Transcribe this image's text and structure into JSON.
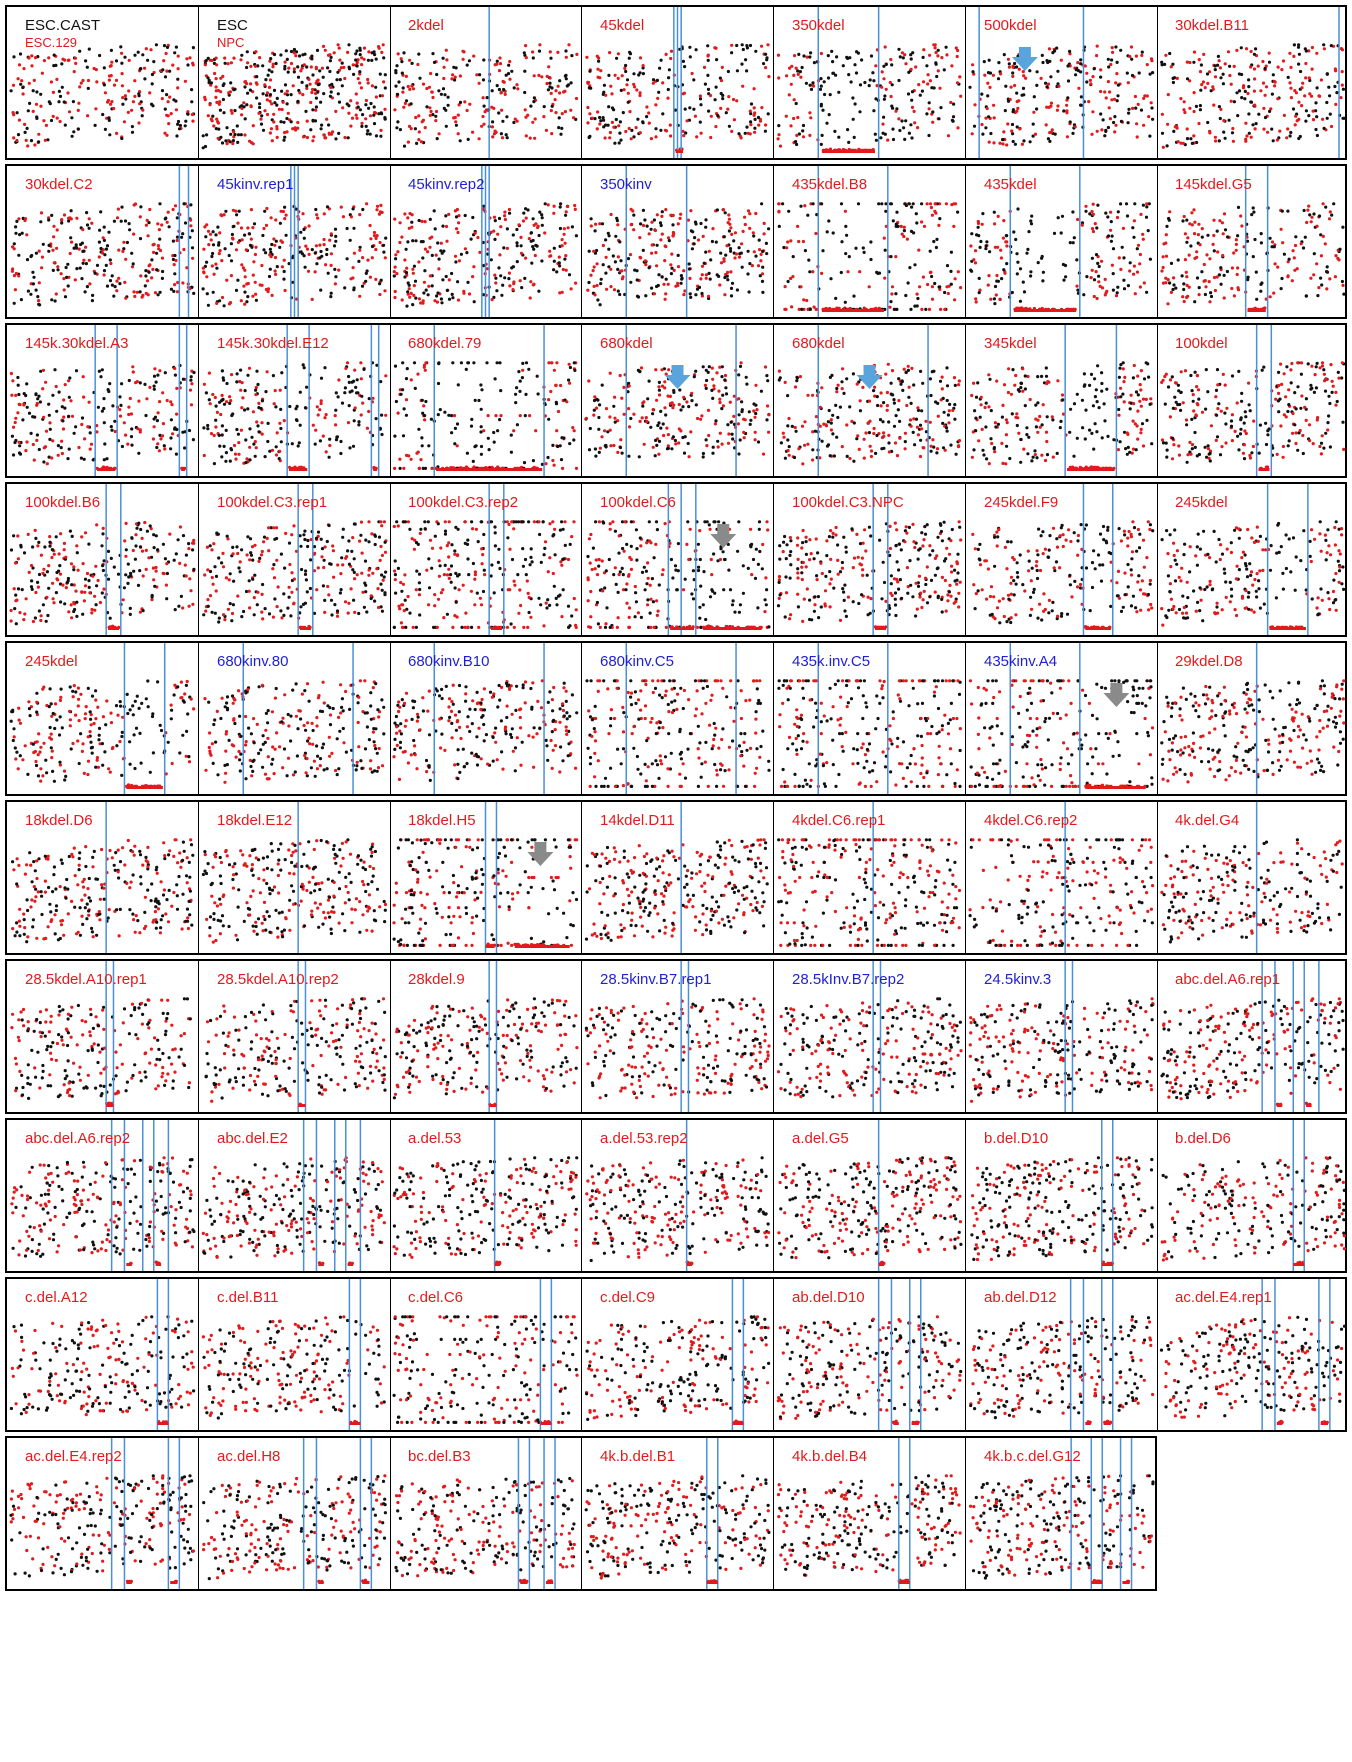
{
  "colors": {
    "red_points": "#e31a1c",
    "black_points": "#111111",
    "blue_lines": "#4a90d9",
    "red_bar": "#e31a1c",
    "blue_arrow": "#5aa4dd",
    "gray_arrow": "#8a8a8a",
    "label_red": "#e31a1c",
    "label_blue": "#1f1fd6"
  },
  "chart_data": [
    {
      "type": "scatter",
      "title": "ESC.CAST",
      "subtitle": "ESC.129",
      "title_color": "black",
      "lines": [],
      "bars": [],
      "arrow": null
    },
    {
      "type": "scatter",
      "title": "ESC",
      "subtitle": "NPC",
      "title_color": "black",
      "lines": [],
      "bars": [],
      "arrow": null
    },
    {
      "type": "scatter",
      "title": "2kdel",
      "title_color": "red",
      "lines": [
        0.52
      ],
      "bars": [],
      "arrow": null
    },
    {
      "type": "scatter",
      "title": "45kdel",
      "title_color": "red",
      "lines": [
        0.48,
        0.5,
        0.52
      ],
      "bars": [
        [
          0.49,
          0.53
        ]
      ],
      "arrow": null
    },
    {
      "type": "scatter",
      "title": "350kdel",
      "title_color": "red",
      "lines": [
        0.22,
        0.55
      ],
      "bars": [
        [
          0.24,
          0.53
        ]
      ],
      "arrow": null
    },
    {
      "type": "scatter",
      "title": "500kdel",
      "title_color": "red",
      "lines": [
        0.05,
        0.62
      ],
      "bars": [],
      "arrow": {
        "color": "blue",
        "x": 0.3
      }
    },
    {
      "type": "scatter",
      "title": "30kdel.B11",
      "title_color": "red",
      "lines": [
        0.97
      ],
      "bars": [],
      "arrow": null
    },
    {
      "type": "scatter",
      "title": "30kdel.C2",
      "title_color": "red",
      "lines": [
        0.92,
        0.97
      ],
      "bars": [],
      "arrow": null
    },
    {
      "type": "scatter",
      "title": "45kinv.rep1",
      "title_color": "blue",
      "lines": [
        0.48,
        0.5,
        0.52
      ],
      "bars": [],
      "arrow": null
    },
    {
      "type": "scatter",
      "title": "45kinv.rep2",
      "title_color": "blue",
      "lines": [
        0.48,
        0.5,
        0.52
      ],
      "bars": [],
      "arrow": null
    },
    {
      "type": "scatter",
      "title": "350kinv",
      "title_color": "blue",
      "lines": [
        0.22,
        0.55
      ],
      "bars": [],
      "arrow": null
    },
    {
      "type": "scatter",
      "title": "435kdel.B8",
      "title_color": "red",
      "lines": [
        0.22,
        0.6
      ],
      "bars": [
        [
          0.24,
          0.58
        ]
      ],
      "arrow": null
    },
    {
      "type": "scatter",
      "title": "435kdel",
      "title_color": "red",
      "lines": [
        0.22,
        0.6
      ],
      "bars": [
        [
          0.24,
          0.58
        ]
      ],
      "arrow": null
    },
    {
      "type": "scatter",
      "title": "145kdel.G5",
      "title_color": "red",
      "lines": [
        0.46,
        0.58
      ],
      "bars": [
        [
          0.47,
          0.57
        ]
      ],
      "arrow": null
    },
    {
      "type": "scatter",
      "title": "145k.30kdel.A3",
      "title_color": "red",
      "lines": [
        0.46,
        0.58,
        0.92,
        0.96
      ],
      "bars": [
        [
          0.47,
          0.57
        ],
        [
          0.93,
          0.95
        ]
      ],
      "arrow": null
    },
    {
      "type": "scatter",
      "title": "145k.30kdel.E12",
      "title_color": "red",
      "lines": [
        0.46,
        0.58,
        0.92,
        0.96
      ],
      "bars": [
        [
          0.47,
          0.57
        ],
        [
          0.93,
          0.95
        ]
      ],
      "arrow": null
    },
    {
      "type": "scatter",
      "title": "680kdel.79",
      "title_color": "red",
      "lines": [
        0.22,
        0.82
      ],
      "bars": [
        [
          0.23,
          0.81
        ]
      ],
      "arrow": null
    },
    {
      "type": "scatter",
      "title": "680kdel",
      "title_color": "red",
      "lines": [
        0.22,
        0.82
      ],
      "bars": [],
      "arrow": {
        "color": "blue",
        "x": 0.5
      }
    },
    {
      "type": "scatter",
      "title": "680kdel",
      "title_color": "red",
      "lines": [
        0.22,
        0.82
      ],
      "bars": [],
      "arrow": {
        "color": "blue",
        "x": 0.5
      }
    },
    {
      "type": "scatter",
      "title": "345kdel",
      "title_color": "red",
      "lines": [
        0.52,
        0.8
      ],
      "bars": [
        [
          0.53,
          0.79
        ]
      ],
      "arrow": null
    },
    {
      "type": "scatter",
      "title": "100kdel",
      "title_color": "red",
      "lines": [
        0.52,
        0.6
      ],
      "bars": [
        [
          0.53,
          0.59
        ]
      ],
      "arrow": null
    },
    {
      "type": "scatter",
      "title": "100kdel.B6",
      "title_color": "red",
      "lines": [
        0.52,
        0.6
      ],
      "bars": [
        [
          0.53,
          0.59
        ]
      ],
      "arrow": null
    },
    {
      "type": "scatter",
      "title": "100kdel.C3.rep1",
      "title_color": "red",
      "lines": [
        0.52,
        0.6
      ],
      "bars": [
        [
          0.53,
          0.59
        ]
      ],
      "arrow": null
    },
    {
      "type": "scatter",
      "title": "100kdel.C3.rep2",
      "title_color": "red",
      "lines": [
        0.52,
        0.6
      ],
      "bars": [
        [
          0.53,
          0.59
        ]
      ],
      "arrow": null
    },
    {
      "type": "scatter",
      "title": "100kdel.C6",
      "title_color": "red",
      "lines": [
        0.45,
        0.52,
        0.6
      ],
      "bars": [
        [
          0.46,
          0.59
        ],
        [
          0.64,
          0.96
        ]
      ],
      "arrow": {
        "color": "gray",
        "x": 0.75
      }
    },
    {
      "type": "scatter",
      "title": "100kdel.C3.NPC",
      "title_color": "red",
      "lines": [
        0.52,
        0.6
      ],
      "bars": [
        [
          0.53,
          0.59
        ]
      ],
      "arrow": null
    },
    {
      "type": "scatter",
      "title": "245kdel.F9",
      "title_color": "red",
      "lines": [
        0.62,
        0.78
      ],
      "bars": [
        [
          0.63,
          0.77
        ]
      ],
      "arrow": null
    },
    {
      "type": "scatter",
      "title": "245kdel",
      "title_color": "red",
      "lines": [
        0.58,
        0.8
      ],
      "bars": [
        [
          0.59,
          0.79
        ]
      ],
      "arrow": null
    },
    {
      "type": "scatter",
      "title": "245kdel",
      "title_color": "red",
      "lines": [
        0.62,
        0.84
      ],
      "bars": [
        [
          0.63,
          0.83
        ]
      ],
      "arrow": null
    },
    {
      "type": "scatter",
      "title": "680kinv.80",
      "title_color": "blue",
      "lines": [
        0.22,
        0.82
      ],
      "bars": [],
      "arrow": null
    },
    {
      "type": "scatter",
      "title": "680kinv.B10",
      "title_color": "blue",
      "lines": [
        0.22,
        0.82
      ],
      "bars": [],
      "arrow": null
    },
    {
      "type": "scatter",
      "title": "680kinv.C5",
      "title_color": "blue",
      "lines": [
        0.22,
        0.82
      ],
      "bars": [],
      "arrow": null
    },
    {
      "type": "scatter",
      "title": "435k.inv.C5",
      "title_color": "blue",
      "lines": [
        0.22,
        0.6
      ],
      "bars": [],
      "arrow": null
    },
    {
      "type": "scatter",
      "title": "435kinv.A4",
      "title_color": "blue",
      "lines": [
        0.22,
        0.6
      ],
      "bars": [
        [
          0.63,
          0.96
        ]
      ],
      "arrow": {
        "color": "gray",
        "x": 0.8
      }
    },
    {
      "type": "scatter",
      "title": "29kdel.D8",
      "title_color": "red",
      "lines": [
        0.52
      ],
      "bars": [],
      "arrow": null
    },
    {
      "type": "scatter",
      "title": "18kdel.D6",
      "title_color": "red",
      "lines": [
        0.52
      ],
      "bars": [],
      "arrow": null
    },
    {
      "type": "scatter",
      "title": "18kdel.E12",
      "title_color": "red",
      "lines": [
        0.52
      ],
      "bars": [],
      "arrow": null
    },
    {
      "type": "scatter",
      "title": "18kdel.H5",
      "title_color": "red",
      "lines": [
        0.5,
        0.56
      ],
      "bars": [
        [
          0.5,
          0.55
        ],
        [
          0.66,
          0.96
        ]
      ],
      "arrow": {
        "color": "gray",
        "x": 0.8
      }
    },
    {
      "type": "scatter",
      "title": "14kdel.D11",
      "title_color": "red",
      "lines": [
        0.52
      ],
      "bars": [],
      "arrow": null
    },
    {
      "type": "scatter",
      "title": "4kdel.C6.rep1",
      "title_color": "red",
      "lines": [
        0.52
      ],
      "bars": [],
      "arrow": null
    },
    {
      "type": "scatter",
      "title": "4kdel.C6.rep2",
      "title_color": "red",
      "lines": [
        0.52
      ],
      "bars": [],
      "arrow": null
    },
    {
      "type": "scatter",
      "title": "4k.del.G4",
      "title_color": "red",
      "lines": [
        0.52
      ],
      "bars": [],
      "arrow": null
    },
    {
      "type": "scatter",
      "title": "28.5kdel.A10.rep1",
      "title_color": "red",
      "lines": [
        0.52,
        0.56
      ],
      "bars": [
        [
          0.52,
          0.56
        ]
      ],
      "arrow": null
    },
    {
      "type": "scatter",
      "title": "28.5kdel.A10.rep2",
      "title_color": "red",
      "lines": [
        0.52,
        0.56
      ],
      "bars": [
        [
          0.52,
          0.56
        ]
      ],
      "arrow": null
    },
    {
      "type": "scatter",
      "title": "28kdel.9",
      "title_color": "red",
      "lines": [
        0.52,
        0.56
      ],
      "bars": [
        [
          0.52,
          0.56
        ]
      ],
      "arrow": null
    },
    {
      "type": "scatter",
      "title": "28.5kinv.B7.rep1",
      "title_color": "blue",
      "lines": [
        0.52,
        0.56
      ],
      "bars": [],
      "arrow": null
    },
    {
      "type": "scatter",
      "title": "28.5kInv.B7.rep2",
      "title_color": "blue",
      "lines": [
        0.52,
        0.56
      ],
      "bars": [],
      "arrow": null
    },
    {
      "type": "scatter",
      "title": "24.5kinv.3",
      "title_color": "blue",
      "lines": [
        0.52,
        0.56
      ],
      "bars": [],
      "arrow": null
    },
    {
      "type": "scatter",
      "title": "abc.del.A6.rep1",
      "title_color": "red",
      "lines": [
        0.55,
        0.62,
        0.72,
        0.78,
        0.86
      ],
      "bars": [
        [
          0.63,
          0.66
        ],
        [
          0.79,
          0.82
        ]
      ],
      "arrow": null
    },
    {
      "type": "scatter",
      "title": "abc.del.A6.rep2",
      "title_color": "red",
      "lines": [
        0.55,
        0.62,
        0.72,
        0.78,
        0.86
      ],
      "bars": [
        [
          0.63,
          0.66
        ],
        [
          0.79,
          0.82
        ]
      ],
      "arrow": null
    },
    {
      "type": "scatter",
      "title": "abc.del.E2",
      "title_color": "red",
      "lines": [
        0.55,
        0.62,
        0.72,
        0.78,
        0.86
      ],
      "bars": [
        [
          0.63,
          0.66
        ],
        [
          0.79,
          0.82
        ]
      ],
      "arrow": null
    },
    {
      "type": "scatter",
      "title": "a.del.53",
      "title_color": "red",
      "lines": [
        0.55
      ],
      "bars": [
        [
          0.55,
          0.58
        ]
      ],
      "arrow": null
    },
    {
      "type": "scatter",
      "title": "a.del.53.rep2",
      "title_color": "red",
      "lines": [
        0.55
      ],
      "bars": [
        [
          0.55,
          0.58
        ]
      ],
      "arrow": null
    },
    {
      "type": "scatter",
      "title": "a.del.G5",
      "title_color": "red",
      "lines": [
        0.55
      ],
      "bars": [
        [
          0.55,
          0.58
        ]
      ],
      "arrow": null
    },
    {
      "type": "scatter",
      "title": "b.del.D10",
      "title_color": "red",
      "lines": [
        0.72,
        0.78
      ],
      "bars": [
        [
          0.72,
          0.78
        ]
      ],
      "arrow": null
    },
    {
      "type": "scatter",
      "title": "b.del.D6",
      "title_color": "red",
      "lines": [
        0.72,
        0.78
      ],
      "bars": [
        [
          0.72,
          0.78
        ]
      ],
      "arrow": null
    },
    {
      "type": "scatter",
      "title": "c.del.A12",
      "title_color": "red",
      "lines": [
        0.8,
        0.86
      ],
      "bars": [
        [
          0.8,
          0.86
        ]
      ],
      "arrow": null
    },
    {
      "type": "scatter",
      "title": "c.del.B11",
      "title_color": "red",
      "lines": [
        0.8,
        0.86
      ],
      "bars": [
        [
          0.8,
          0.86
        ]
      ],
      "arrow": null
    },
    {
      "type": "scatter",
      "title": "c.del.C6",
      "title_color": "red",
      "lines": [
        0.8,
        0.86
      ],
      "bars": [
        [
          0.8,
          0.86
        ]
      ],
      "arrow": null
    },
    {
      "type": "scatter",
      "title": "c.del.C9",
      "title_color": "red",
      "lines": [
        0.8,
        0.86
      ],
      "bars": [
        [
          0.8,
          0.86
        ]
      ],
      "arrow": null
    },
    {
      "type": "scatter",
      "title": "ab.del.D10",
      "title_color": "red",
      "lines": [
        0.55,
        0.62,
        0.72,
        0.78
      ],
      "bars": [
        [
          0.63,
          0.66
        ],
        [
          0.73,
          0.77
        ]
      ],
      "arrow": null
    },
    {
      "type": "scatter",
      "title": "ab.del.D12",
      "title_color": "red",
      "lines": [
        0.55,
        0.62,
        0.72,
        0.78
      ],
      "bars": [
        [
          0.63,
          0.66
        ],
        [
          0.73,
          0.77
        ]
      ],
      "arrow": null
    },
    {
      "type": "scatter",
      "title": "ac.del.E4.rep1",
      "title_color": "red",
      "lines": [
        0.55,
        0.62,
        0.86,
        0.92
      ],
      "bars": [
        [
          0.63,
          0.66
        ],
        [
          0.87,
          0.91
        ]
      ],
      "arrow": null
    },
    {
      "type": "scatter",
      "title": "ac.del.E4.rep2",
      "title_color": "red",
      "lines": [
        0.55,
        0.62,
        0.86,
        0.92
      ],
      "bars": [
        [
          0.63,
          0.66
        ],
        [
          0.87,
          0.91
        ]
      ],
      "arrow": null
    },
    {
      "type": "scatter",
      "title": "ac.del.H8",
      "title_color": "red",
      "lines": [
        0.55,
        0.62,
        0.86,
        0.92
      ],
      "bars": [
        [
          0.63,
          0.66
        ],
        [
          0.87,
          0.91
        ]
      ],
      "arrow": null
    },
    {
      "type": "scatter",
      "title": "bc.del.B3",
      "title_color": "red",
      "lines": [
        0.68,
        0.74,
        0.82,
        0.88
      ],
      "bars": [
        [
          0.69,
          0.73
        ],
        [
          0.83,
          0.87
        ]
      ],
      "arrow": null
    },
    {
      "type": "scatter",
      "title": "4k.b.del.B1",
      "title_color": "red",
      "lines": [
        0.66,
        0.72
      ],
      "bars": [
        [
          0.66,
          0.72
        ]
      ],
      "arrow": null
    },
    {
      "type": "scatter",
      "title": "4k.b.del.B4",
      "title_color": "red",
      "lines": [
        0.66,
        0.72
      ],
      "bars": [
        [
          0.66,
          0.72
        ]
      ],
      "arrow": null
    },
    {
      "type": "scatter",
      "title": "4k.b.c.del.G12",
      "title_color": "red",
      "lines": [
        0.55,
        0.66,
        0.72,
        0.82,
        0.88
      ],
      "bars": [
        [
          0.66,
          0.72
        ],
        [
          0.83,
          0.87
        ]
      ],
      "arrow": null
    }
  ]
}
